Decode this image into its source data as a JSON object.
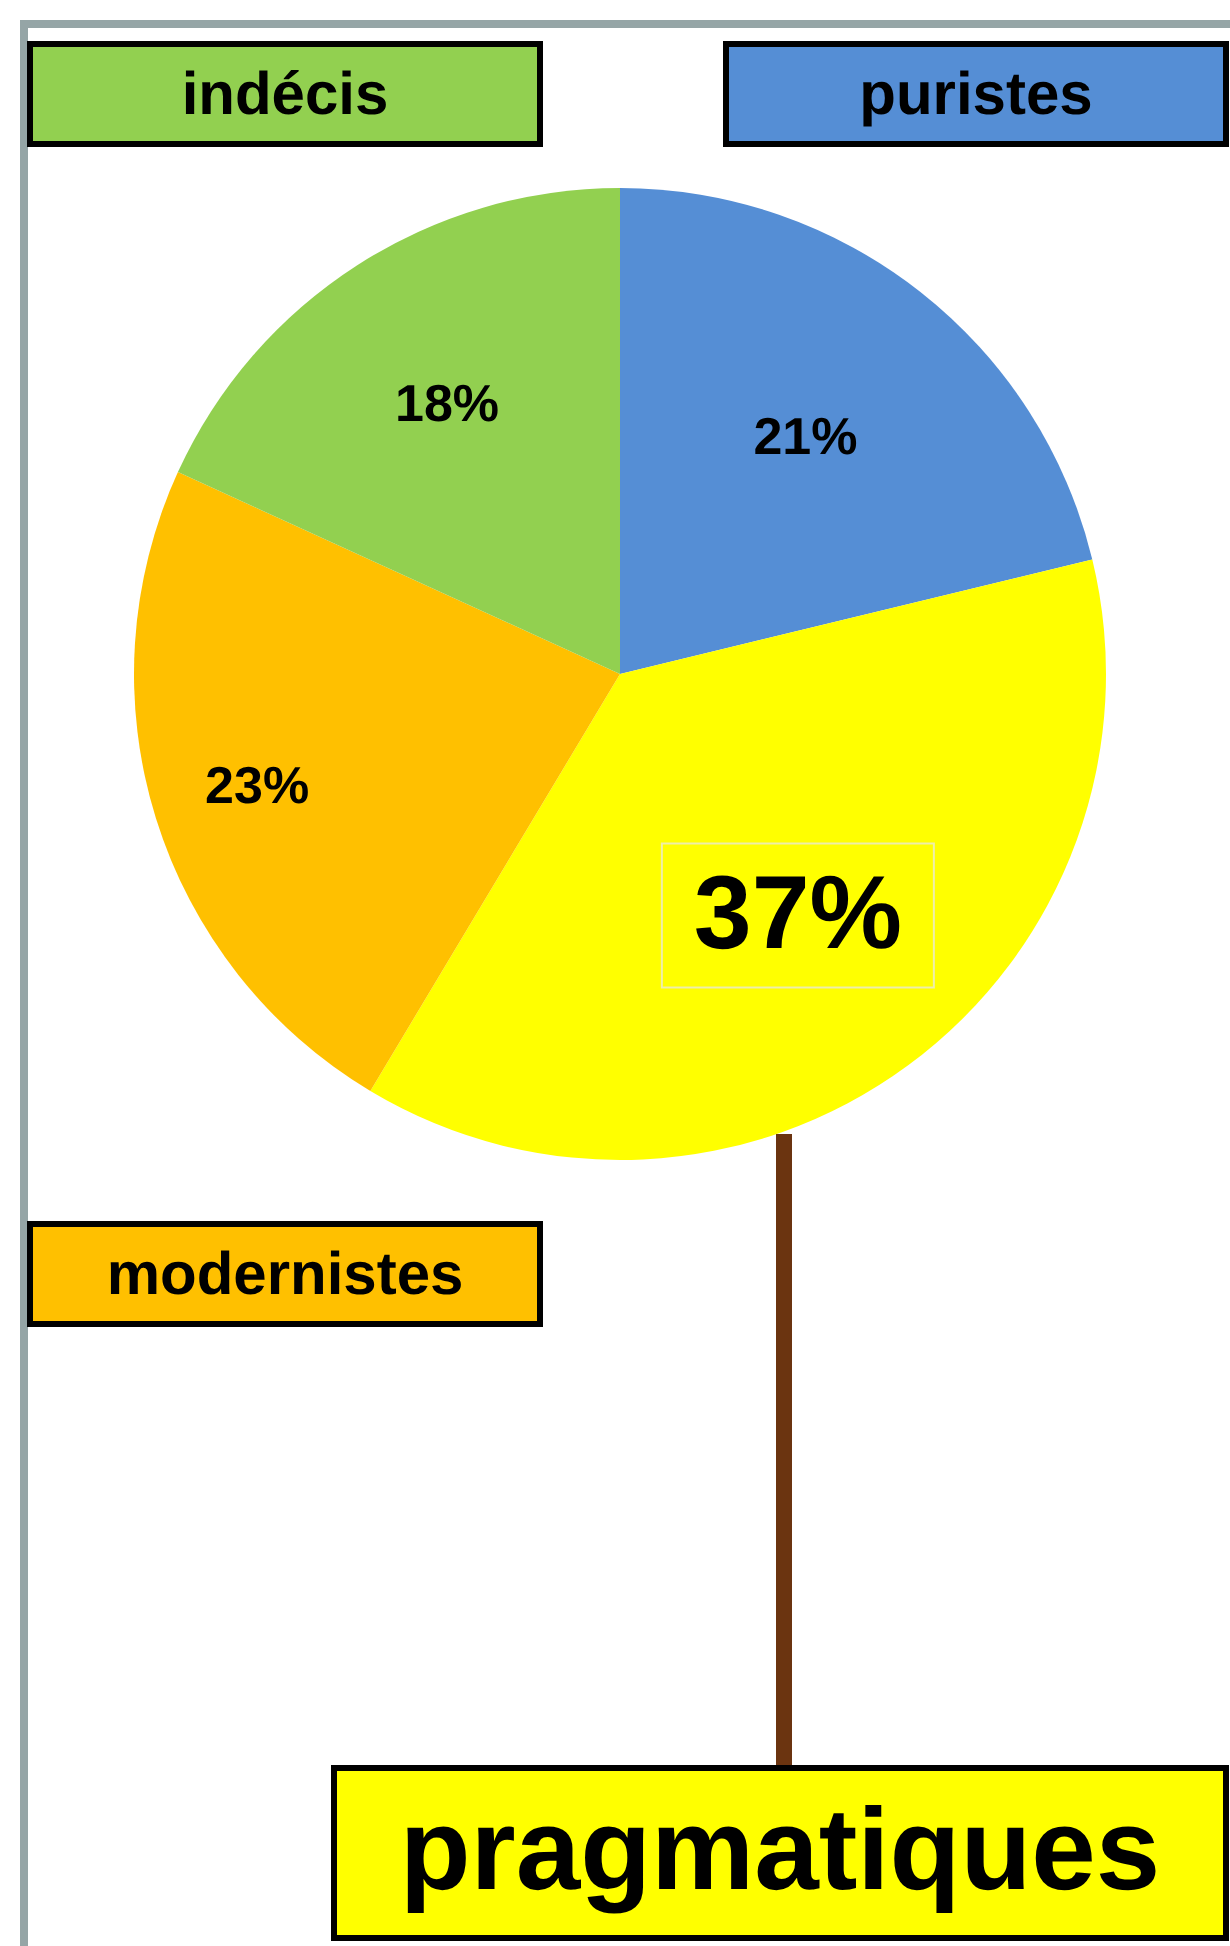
{
  "chart_data": {
    "type": "pie",
    "categories": [
      "puristes",
      "pragmatiques",
      "modernistes",
      "indécis"
    ],
    "values": [
      21,
      37,
      23,
      18
    ],
    "colors": [
      "#558ed5",
      "#ffff00",
      "#ffc000",
      "#92d050"
    ],
    "value_labels": [
      "21%",
      "37%",
      "23%",
      "18%"
    ]
  }
}
